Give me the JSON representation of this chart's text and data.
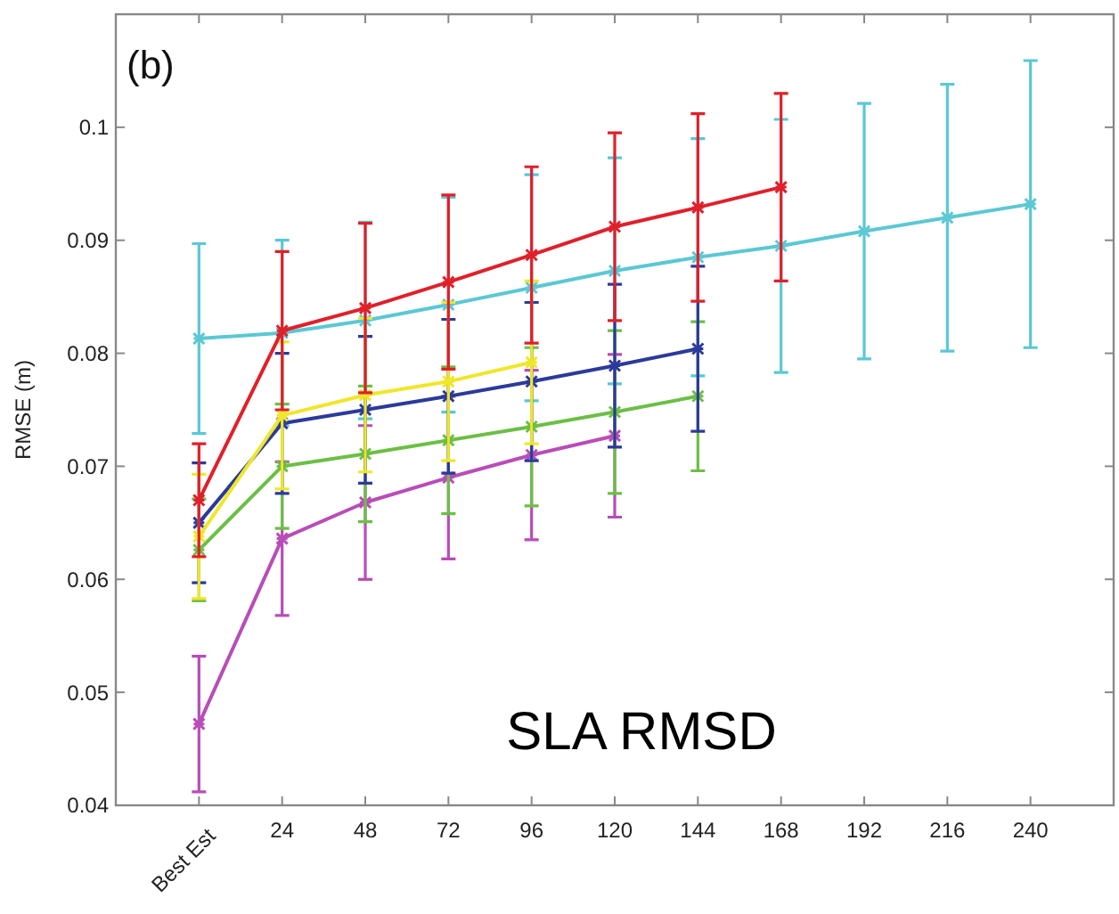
{
  "chart_data": {
    "type": "line",
    "ylabel": "RMSE (m)",
    "categories": [
      "Best Est",
      "24",
      "48",
      "72",
      "96",
      "120",
      "144",
      "168",
      "192",
      "216",
      "240"
    ],
    "ylim": [
      0.04,
      0.11
    ],
    "yticks": [
      0.04,
      0.05,
      0.06,
      0.07,
      0.08,
      0.09,
      0.1
    ],
    "grid": false,
    "marker": "cross",
    "line_style": "solid",
    "annotations": [
      "(b)",
      "SLA RMSD"
    ],
    "series": [
      {
        "color": "#5bc8d4",
        "values": [
          0.0813,
          0.0818,
          0.0829,
          0.0843,
          0.0858,
          0.0873,
          0.0885,
          0.0895,
          0.0908,
          0.092,
          0.0932
        ],
        "errors": [
          0.0084,
          0.0082,
          0.0087,
          0.0095,
          0.01,
          0.01,
          0.0105,
          0.0112,
          0.0113,
          0.0118,
          0.0127
        ]
      },
      {
        "color": "#b84db8",
        "values": [
          0.0472,
          0.0636,
          0.0668,
          0.069,
          0.071,
          0.0727,
          null,
          null,
          null,
          null,
          null
        ],
        "errors": [
          0.006,
          0.0068,
          0.0068,
          0.0072,
          0.0075,
          0.0072,
          null,
          null,
          null,
          null,
          null
        ]
      },
      {
        "color": "#6cbf45",
        "values": [
          0.0626,
          0.07,
          0.0711,
          0.0723,
          0.0735,
          0.0748,
          0.0762,
          null,
          null,
          null,
          null
        ],
        "errors": [
          0.0045,
          0.0055,
          0.006,
          0.0065,
          0.007,
          0.0072,
          0.0066,
          null,
          null,
          null,
          null
        ]
      },
      {
        "color": "#2b3a9a",
        "values": [
          0.065,
          0.0738,
          0.075,
          0.0762,
          0.0775,
          0.0789,
          0.0804,
          null,
          null,
          null,
          null
        ],
        "errors": [
          0.0053,
          0.0062,
          0.0065,
          0.0068,
          0.007,
          0.0072,
          0.0073,
          null,
          null,
          null,
          null
        ]
      },
      {
        "color": "#f0e62a",
        "values": [
          0.0638,
          0.0745,
          0.0763,
          0.0775,
          0.0792,
          null,
          null,
          null,
          null,
          null,
          null
        ],
        "errors": [
          0.0055,
          0.0065,
          0.0068,
          0.007,
          0.0072,
          null,
          null,
          null,
          null,
          null,
          null
        ]
      },
      {
        "color": "#e0202a",
        "values": [
          0.067,
          0.082,
          0.084,
          0.0863,
          0.0887,
          0.0912,
          0.0929,
          0.0947,
          null,
          null,
          null
        ],
        "errors": [
          0.005,
          0.007,
          0.0075,
          0.0077,
          0.0078,
          0.0083,
          0.0083,
          0.0083,
          null,
          null,
          null
        ]
      }
    ]
  }
}
